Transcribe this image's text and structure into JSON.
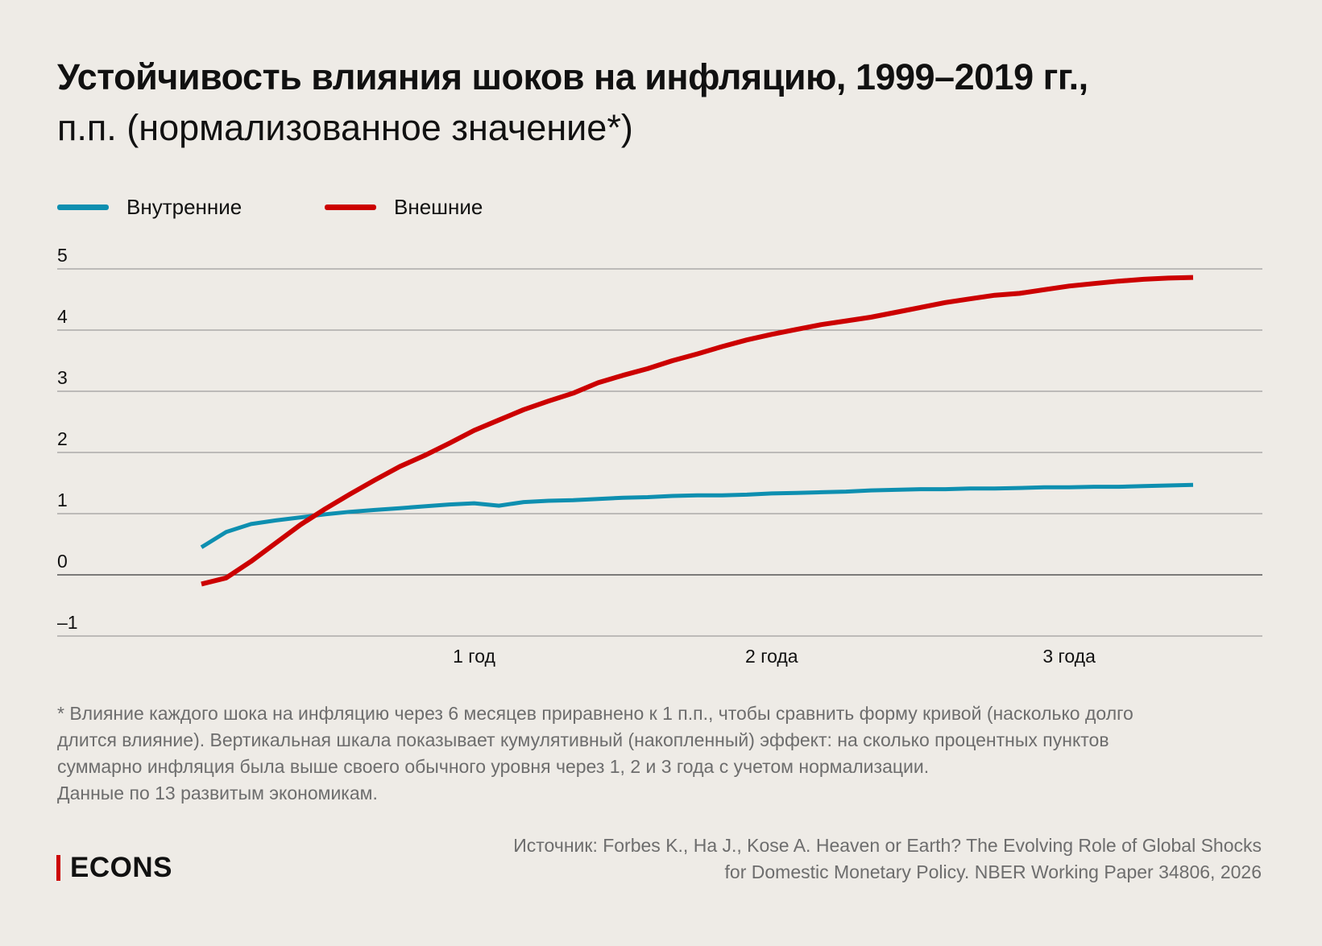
{
  "title": "Устойчивость влияния шоков на инфляцию, 1999–2019 гг.,",
  "subtitle": "п.п. (нормализованное значение*)",
  "chart_data": {
    "type": "line",
    "ylim": [
      -1,
      5
    ],
    "yticks": [
      "5",
      "4",
      "3",
      "2",
      "1",
      "0",
      "–1"
    ],
    "ytick_values": [
      5,
      4,
      3,
      2,
      1,
      0,
      -1
    ],
    "xlim": [
      1,
      41
    ],
    "xticks": [
      {
        "label": "1 год",
        "x": 12
      },
      {
        "label": "2 года",
        "x": 24
      },
      {
        "label": "3 года",
        "x": 36
      }
    ],
    "x": [
      1,
      2,
      3,
      4,
      5,
      6,
      7,
      8,
      9,
      10,
      11,
      12,
      13,
      14,
      15,
      16,
      17,
      18,
      19,
      20,
      21,
      22,
      23,
      24,
      25,
      26,
      27,
      28,
      29,
      30,
      31,
      32,
      33,
      34,
      35,
      36,
      37,
      38,
      39,
      40,
      41
    ],
    "series": [
      {
        "name": "Внутренние",
        "color": "#0e8fb0",
        "values": [
          0.45,
          0.7,
          0.83,
          0.89,
          0.94,
          0.99,
          1.03,
          1.06,
          1.09,
          1.12,
          1.15,
          1.17,
          1.13,
          1.19,
          1.21,
          1.22,
          1.24,
          1.26,
          1.27,
          1.29,
          1.3,
          1.3,
          1.31,
          1.33,
          1.34,
          1.35,
          1.36,
          1.38,
          1.39,
          1.4,
          1.4,
          1.41,
          1.41,
          1.42,
          1.43,
          1.43,
          1.44,
          1.44,
          1.45,
          1.46,
          1.47
        ]
      },
      {
        "name": "Внешние",
        "color": "#cc0000",
        "values": [
          -0.15,
          -0.05,
          0.22,
          0.52,
          0.82,
          1.08,
          1.32,
          1.55,
          1.77,
          1.95,
          2.15,
          2.36,
          2.53,
          2.7,
          2.84,
          2.97,
          3.14,
          3.26,
          3.37,
          3.5,
          3.61,
          3.73,
          3.84,
          3.93,
          4.01,
          4.09,
          4.15,
          4.21,
          4.29,
          4.37,
          4.45,
          4.51,
          4.57,
          4.6,
          4.66,
          4.72,
          4.76,
          4.8,
          4.83,
          4.85,
          4.86
        ]
      }
    ]
  },
  "footnote": [
    "* Влияние каждого шока на инфляцию через 6 месяцев приравнено к 1 п.п., чтобы сравнить форму кривой (насколько долго",
    "длится влияние). Вертикальная шкала показывает кумулятивный (накопленный) эффект: на сколько процентных пунктов",
    "суммарно инфляция была выше своего обычного уровня через 1, 2 и 3 года с учетом нормализации.",
    "Данные по 13 развитым экономикам."
  ],
  "source": [
    "Источник: Forbes K., Ha J., Kose A. Heaven or Earth? The Evolving Role of Global Shocks",
    "for Domestic Monetary Policy. NBER Working Paper 34806, 2026"
  ],
  "logo": "ECONS"
}
